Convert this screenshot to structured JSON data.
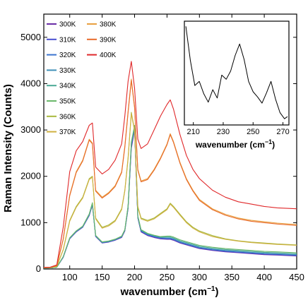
{
  "chart_data": [
    {
      "type": "line",
      "xlabel": "wavenumber",
      "xlabel_unit": "(cm",
      "xlabel_sup": "−1",
      "xlabel_close": ")",
      "ylabel": "Raman Intensity (Counts)",
      "xlim": [
        60,
        450
      ],
      "ylim": [
        0,
        5500
      ],
      "xticks": [
        100,
        150,
        200,
        250,
        300,
        350,
        400,
        450
      ],
      "yticks": [
        0,
        1000,
        2000,
        3000,
        4000,
        5000
      ],
      "legend_position": "top-left",
      "x": [
        60,
        70,
        80,
        90,
        100,
        110,
        120,
        130,
        135,
        140,
        150,
        160,
        170,
        180,
        185,
        190,
        195,
        200,
        205,
        210,
        220,
        230,
        240,
        250,
        255,
        260,
        270,
        280,
        290,
        300,
        320,
        340,
        360,
        380,
        400,
        420,
        450
      ],
      "series": [
        {
          "name": "300K",
          "color": "#6a2da6",
          "values": [
            20,
            25,
            40,
            250,
            650,
            800,
            900,
            1150,
            1380,
            700,
            560,
            580,
            620,
            680,
            820,
            1300,
            2600,
            3000,
            1100,
            800,
            720,
            680,
            650,
            640,
            640,
            620,
            560,
            520,
            480,
            440,
            400,
            370,
            350,
            330,
            310,
            300,
            280
          ]
        },
        {
          "name": "310K",
          "color": "#4a4fd0",
          "values": [
            20,
            25,
            40,
            255,
            655,
            805,
            905,
            1160,
            1390,
            705,
            565,
            585,
            625,
            690,
            830,
            1320,
            2650,
            3020,
            1110,
            810,
            730,
            690,
            660,
            650,
            650,
            630,
            570,
            530,
            490,
            450,
            410,
            380,
            360,
            340,
            320,
            310,
            290
          ]
        },
        {
          "name": "320K",
          "color": "#3b74cf",
          "values": [
            20,
            25,
            40,
            258,
            660,
            810,
            910,
            1165,
            1400,
            710,
            570,
            590,
            630,
            695,
            835,
            1330,
            2680,
            3040,
            1120,
            820,
            740,
            700,
            670,
            660,
            660,
            640,
            580,
            540,
            500,
            460,
            420,
            390,
            370,
            350,
            330,
            320,
            300
          ]
        },
        {
          "name": "330K",
          "color": "#3f90b8",
          "values": [
            20,
            25,
            40,
            262,
            665,
            815,
            915,
            1170,
            1410,
            715,
            575,
            595,
            635,
            700,
            840,
            1340,
            2700,
            3060,
            1130,
            830,
            750,
            710,
            680,
            670,
            670,
            650,
            590,
            550,
            510,
            470,
            430,
            400,
            380,
            360,
            340,
            330,
            310
          ]
        },
        {
          "name": "340K",
          "color": "#4aa995",
          "values": [
            20,
            25,
            40,
            265,
            670,
            820,
            920,
            1180,
            1420,
            720,
            580,
            600,
            640,
            705,
            845,
            1350,
            2720,
            3080,
            1140,
            840,
            760,
            720,
            690,
            690,
            690,
            670,
            610,
            570,
            530,
            490,
            450,
            420,
            400,
            380,
            360,
            350,
            330
          ]
        },
        {
          "name": "350K",
          "color": "#6ab86a",
          "values": [
            20,
            25,
            40,
            268,
            675,
            825,
            925,
            1190,
            1430,
            725,
            585,
            605,
            645,
            710,
            850,
            1360,
            2740,
            3100,
            1150,
            850,
            770,
            730,
            700,
            710,
            710,
            690,
            630,
            590,
            550,
            510,
            470,
            440,
            420,
            400,
            380,
            370,
            350
          ]
        },
        {
          "name": "360K",
          "color": "#a8b83c",
          "values": [
            25,
            30,
            55,
            420,
            1050,
            1350,
            1550,
            1950,
            2000,
            1100,
            900,
            950,
            1050,
            1300,
            1700,
            2400,
            3380,
            3000,
            1350,
            1100,
            1050,
            1100,
            1200,
            1300,
            1420,
            1350,
            1180,
            1020,
            900,
            820,
            720,
            650,
            610,
            580,
            560,
            540,
            520
          ]
        },
        {
          "name": "370K",
          "color": "#d0b040",
          "values": [
            25,
            30,
            55,
            410,
            1030,
            1330,
            1530,
            1930,
            1980,
            1080,
            880,
            930,
            1030,
            1280,
            1680,
            2370,
            3350,
            2980,
            1330,
            1080,
            1030,
            1080,
            1180,
            1280,
            1400,
            1330,
            1160,
            1000,
            880,
            800,
            700,
            640,
            600,
            570,
            550,
            530,
            510
          ]
        },
        {
          "name": "380K",
          "color": "#e8a040",
          "values": [
            30,
            35,
            70,
            650,
            1600,
            2100,
            2350,
            2800,
            2720,
            1700,
            1550,
            1650,
            1800,
            2100,
            2650,
            3400,
            4100,
            3500,
            2150,
            1900,
            1950,
            2150,
            2400,
            2700,
            2920,
            2750,
            2300,
            1950,
            1700,
            1500,
            1300,
            1180,
            1100,
            1050,
            1020,
            990,
            960
          ]
        },
        {
          "name": "390K",
          "color": "#e86a2a",
          "values": [
            30,
            35,
            70,
            640,
            1580,
            2080,
            2330,
            2780,
            2700,
            1680,
            1530,
            1630,
            1780,
            2080,
            2620,
            3370,
            4070,
            3480,
            2130,
            1880,
            1930,
            2130,
            2380,
            2680,
            2900,
            2730,
            2280,
            1930,
            1680,
            1480,
            1280,
            1160,
            1080,
            1030,
            1000,
            970,
            940
          ]
        },
        {
          "name": "400K",
          "color": "#e0282a",
          "values": [
            35,
            40,
            90,
            900,
            2100,
            2550,
            2750,
            3100,
            3150,
            2200,
            2050,
            2150,
            2350,
            2700,
            3300,
            4050,
            4480,
            3900,
            2800,
            2600,
            2700,
            3000,
            3300,
            3550,
            3650,
            3450,
            2900,
            2450,
            2150,
            1950,
            1700,
            1550,
            1450,
            1400,
            1350,
            1320,
            1300
          ]
        }
      ]
    },
    {
      "type": "line",
      "xlabel": "wavenumber",
      "xlabel_unit": "(cm",
      "xlabel_sup": "−1",
      "xlabel_close": ")",
      "xlim": [
        204,
        274
      ],
      "xticks": [
        210,
        230,
        250,
        270
      ],
      "y_normalized": true,
      "series": [
        {
          "color": "#000000",
          "x": [
            205,
            208,
            211,
            214,
            217,
            220,
            223,
            226,
            229,
            232,
            235,
            238,
            241,
            244,
            247,
            250,
            253,
            256,
            259,
            262,
            265,
            268,
            271,
            273
          ],
          "values": [
            0.95,
            0.62,
            0.38,
            0.42,
            0.3,
            0.22,
            0.34,
            0.26,
            0.48,
            0.44,
            0.52,
            0.67,
            0.78,
            0.63,
            0.42,
            0.32,
            0.27,
            0.21,
            0.31,
            0.42,
            0.25,
            0.12,
            0.06,
            0.08
          ]
        }
      ]
    }
  ]
}
